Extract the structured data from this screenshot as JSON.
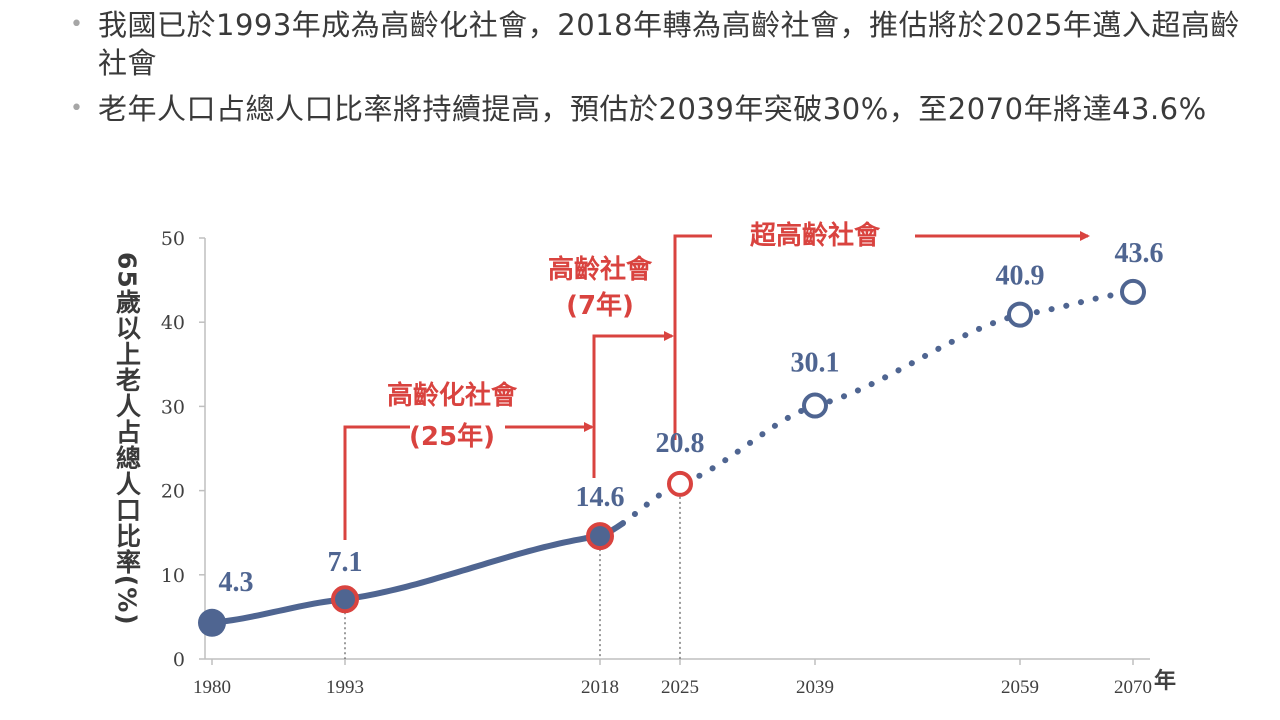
{
  "bullets": [
    {
      "text": "我國已於1993年成為高齡化社會，2018年轉為高齡社會，推估將於2025年邁入超高齡社會"
    },
    {
      "text": "老年人口占總人口比率將持續提高，預估於2039年突破30%，至2070年將達43.6%"
    }
  ],
  "colors": {
    "series": "#4f6591",
    "accent": "#d9433f",
    "axis": "#bfbfbf",
    "text": "#404040"
  },
  "chart_data": {
    "type": "line",
    "ylabel": "65歲以上老人占總人口比率(%)",
    "xlabel": "年",
    "ylim": [
      0,
      50
    ],
    "yticks": [
      0,
      10,
      20,
      30,
      40,
      50
    ],
    "xticks": [
      "1980",
      "1993",
      "2018",
      "2025",
      "2039",
      "2059",
      "2070"
    ],
    "series": [
      {
        "values": [
          [
            1980,
            4.3
          ],
          [
            1993,
            7.1
          ],
          [
            2018,
            14.6
          ],
          [
            2025,
            20.8
          ],
          [
            2039,
            30.1
          ],
          [
            2059,
            40.9
          ],
          [
            2070,
            43.6
          ]
        ],
        "solid_until": 2020
      }
    ],
    "markers": [
      {
        "x": 1980,
        "y": 4.3,
        "label": "4.3",
        "style": "filled",
        "color": "series"
      },
      {
        "x": 1993,
        "y": 7.1,
        "label": "7.1",
        "style": "filled-ring",
        "color": "accent"
      },
      {
        "x": 2018,
        "y": 14.6,
        "label": "14.6",
        "style": "filled-ring",
        "color": "accent"
      },
      {
        "x": 2025,
        "y": 20.8,
        "label": "20.8",
        "style": "hollow",
        "color": "accent"
      },
      {
        "x": 2039,
        "y": 30.1,
        "label": "30.1",
        "style": "hollow",
        "color": "series"
      },
      {
        "x": 2059,
        "y": 40.9,
        "label": "40.9",
        "style": "hollow",
        "color": "series"
      },
      {
        "x": 2070,
        "y": 43.6,
        "label": "43.6",
        "style": "hollow",
        "color": "series"
      }
    ],
    "drop_lines": [
      1993,
      2018,
      2025
    ],
    "annotations": [
      {
        "line1": "高齡化社會",
        "line2": "(25年)",
        "from": 1993,
        "to": 2018
      },
      {
        "line1": "高齡社會",
        "line2": "(7年)",
        "from": 2018,
        "to": 2025
      },
      {
        "line1": "超高齡社會",
        "line2": "",
        "from": 2025,
        "to": 2070
      }
    ],
    "legend": "none",
    "grid": false
  }
}
